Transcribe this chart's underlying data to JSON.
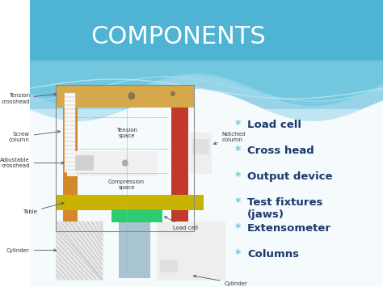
{
  "title": "COMPONENTS",
  "title_color": "#ffffff",
  "title_fontsize": 22,
  "bullet_symbol": "*",
  "bullet_color": "#4ab5d4",
  "bullet_items": [
    "Load cell",
    "Cross head",
    "Output device",
    "Test fixtures\n(jaws)",
    "Extensometer",
    "Columns"
  ],
  "bullet_fontsize": 9.5,
  "bullet_text_color": "#1a3a6b",
  "bg_blue": "#5bbfd8",
  "bg_blue_dark": "#3aa0c0",
  "bg_white": "#ffffff"
}
